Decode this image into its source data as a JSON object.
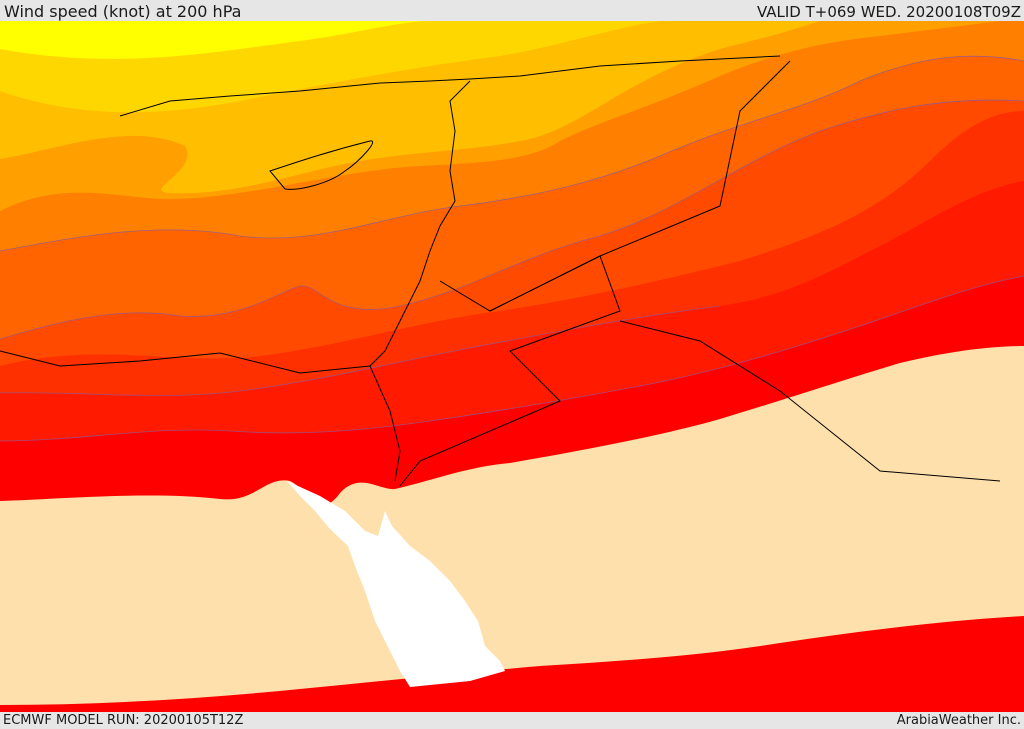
{
  "header": {
    "title": "Wind speed (knot) at 200 hPa",
    "valid": "VALID T+069 WED. 20200108T09Z"
  },
  "footer": {
    "model_run": "ECMWF MODEL RUN: 20200105T12Z",
    "credit": "ArabiaWeather Inc."
  },
  "map": {
    "field": "wind speed at 200 hPa",
    "colors": {
      "band_1": "#ffff00",
      "band_2": "#ffd700",
      "band_3": "#ffbf00",
      "band_4": "#ffa000",
      "band_5": "#ff8000",
      "band_6": "#ff6400",
      "band_7": "#ff4a00",
      "band_8": "#ff3000",
      "band_9": "#ff1a00",
      "band_10": "#ff0000",
      "calm_land": "#fee0ad",
      "sea": "#ffffff",
      "contour": "#8c5a9b",
      "border": "#000000"
    }
  }
}
